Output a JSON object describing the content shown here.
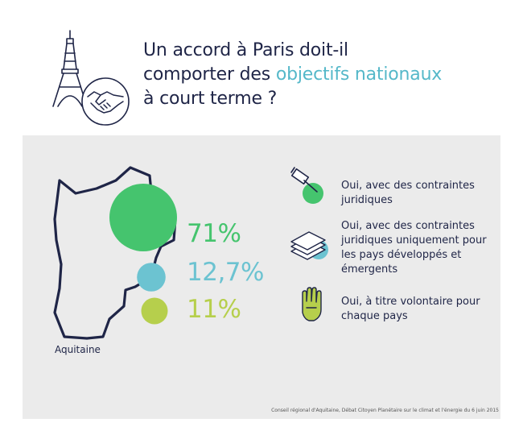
{
  "title": {
    "line1": "Un accord à Paris doit-il",
    "line2_before": "comporter des ",
    "line2_accent": "objectifs nationaux",
    "line3": "à court terme ?"
  },
  "region_label": "Aquitaine",
  "source": "Conseil régional d'Aquitaine, Débat Citoyen Planétaire sur le climat et l'énergie du 6 juin 2015",
  "colors": {
    "accent": "#55b8c9",
    "navy": "#1f2547",
    "panel": "#ebebeb",
    "green": "#45c46e",
    "blue": "#6cc3d1",
    "lime": "#b6cf4c"
  },
  "icons": [
    "eiffel-tower-icon",
    "handshake-icon",
    "gavel-icon",
    "money-stack-icon",
    "hand-icon"
  ],
  "chart_data": {
    "type": "bubble",
    "series": [
      {
        "name": "Oui, avec des contraintes juridiques",
        "value": 71,
        "label": "71%",
        "color": "#45c46e",
        "icon": "gavel-icon",
        "legend_lines": [
          "Oui, avec des contraintes",
          "juridiques"
        ]
      },
      {
        "name": "Oui, avec des contraintes juridiques uniquement pour les pays développés et émergents",
        "value": 12.7,
        "label": "12,7%",
        "color": "#6cc3d1",
        "icon": "money-stack-icon",
        "legend_lines": [
          "Oui, avec des contraintes",
          "juridiques uniquement pour",
          "les pays développés et",
          "émergents"
        ]
      },
      {
        "name": "Oui, à titre volontaire pour chaque pays",
        "value": 11,
        "label": "11%",
        "color": "#b6cf4c",
        "icon": "hand-icon",
        "legend_lines": [
          "Oui, à titre volontaire pour",
          "chaque pays"
        ]
      }
    ]
  }
}
